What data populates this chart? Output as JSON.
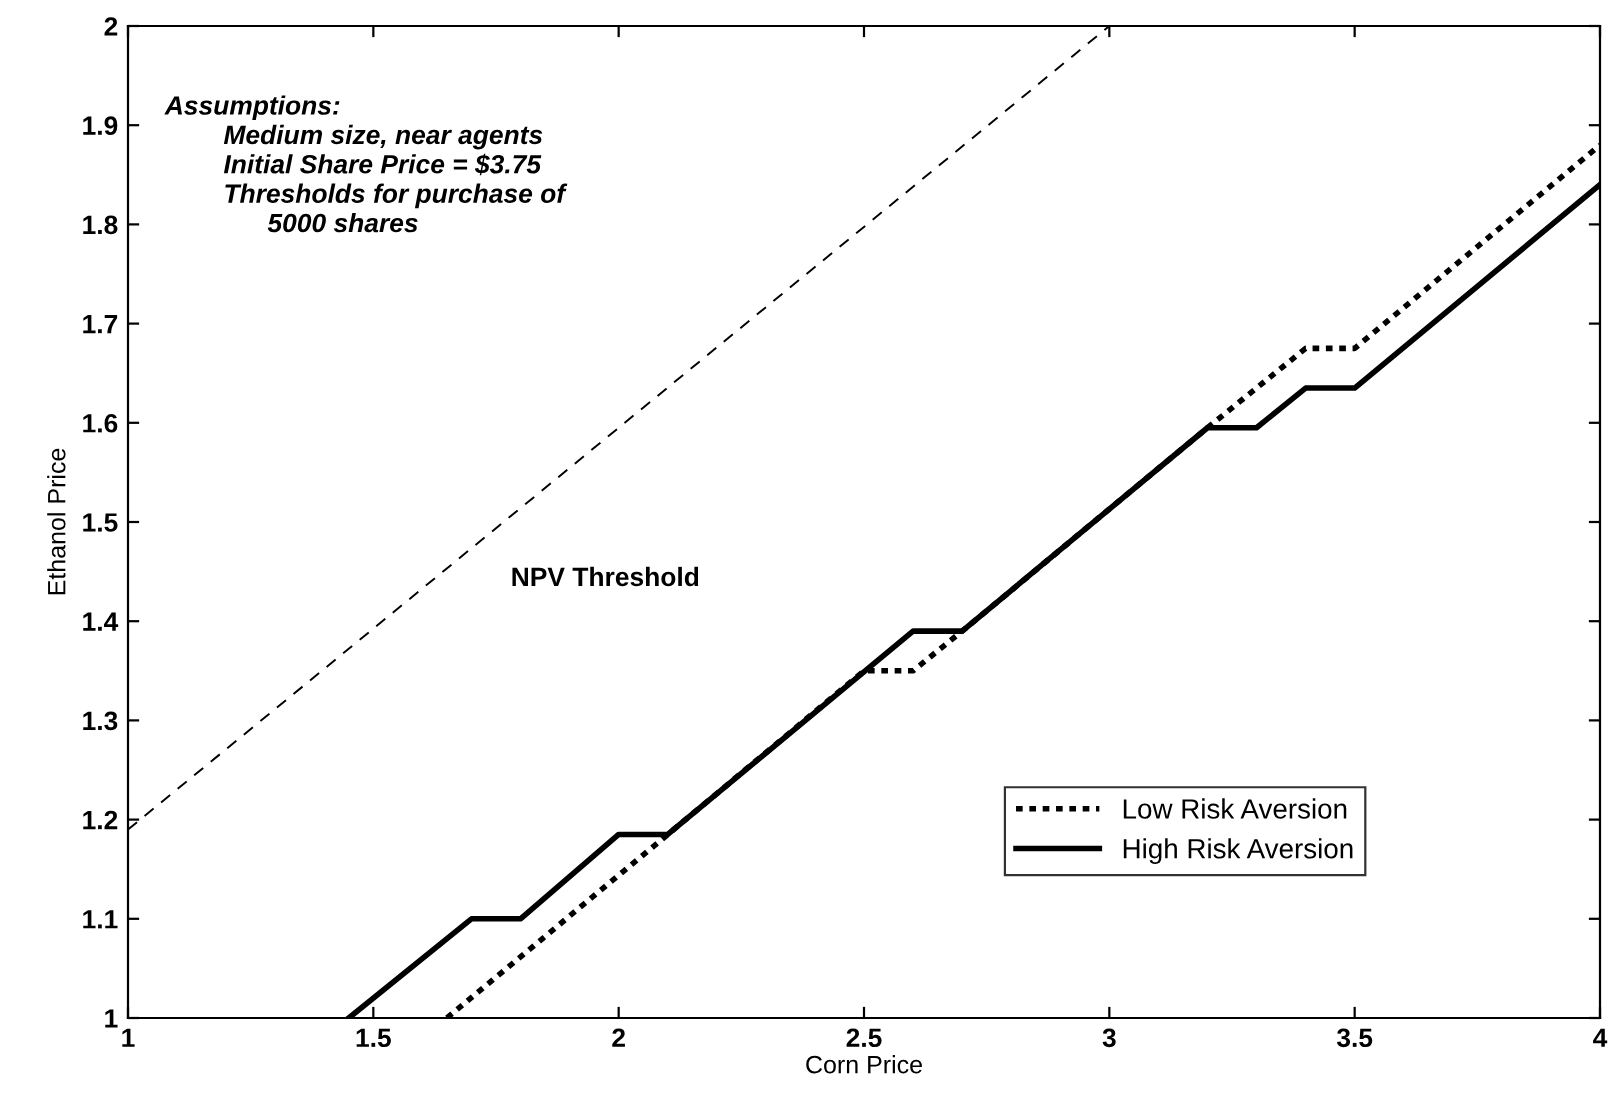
{
  "chart_data": {
    "type": "line",
    "xlabel": "Corn Price",
    "ylabel": "Ethanol Price",
    "xlim": [
      1,
      4
    ],
    "ylim": [
      1,
      2
    ],
    "xticks": [
      1,
      1.5,
      2,
      2.5,
      3,
      3.5,
      4
    ],
    "yticks": [
      1,
      1.1,
      1.2,
      1.3,
      1.4,
      1.5,
      1.6,
      1.7,
      1.8,
      1.9,
      2
    ],
    "grid": false,
    "legend": "bottom right",
    "marker": "none",
    "series": [
      {
        "name": "Low Risk Aversion",
        "color": "#000000",
        "line_style": "dotted",
        "x": [
          1.65,
          2.1,
          2.5,
          2.6,
          2.7,
          3.2,
          3.4,
          3.5,
          4.0
        ],
        "values": [
          1.0,
          1.185,
          1.35,
          1.35,
          1.39,
          1.595,
          1.675,
          1.675,
          1.88
        ]
      },
      {
        "name": "High Risk Aversion",
        "color": "#000000",
        "line_style": "solid",
        "x": [
          1.45,
          1.7,
          1.8,
          2.0,
          2.1,
          2.6,
          2.7,
          3.2,
          3.3,
          3.4,
          3.5,
          4.0
        ],
        "values": [
          1.0,
          1.1,
          1.1,
          1.185,
          1.185,
          1.39,
          1.39,
          1.595,
          1.595,
          1.635,
          1.635,
          1.84
        ]
      },
      {
        "color": "#000000",
        "line_style": "dashed",
        "x": [
          1,
          3
        ],
        "values": [
          1.19,
          2.0
        ]
      }
    ],
    "annotations": [
      "Assumptions:\n        Medium size, near agents\n        Initial Share Price = $3.75\n        Thresholds for purchase of\n              5000 shares",
      "NPV Threshold"
    ]
  }
}
